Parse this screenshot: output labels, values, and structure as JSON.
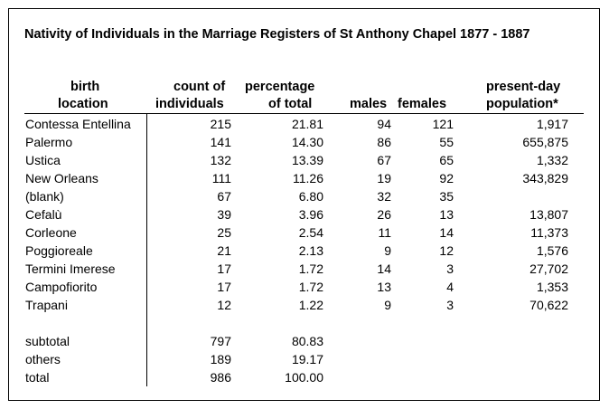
{
  "title": "Nativity of Individuals in the Marriage Registers of St Anthony Chapel 1877 - 1887",
  "headers": {
    "birth_line1": "birth",
    "birth_line2": "location",
    "count_line1": "count of",
    "count_line2": "individuals",
    "pct_line1": "percentage",
    "pct_line2": "of total",
    "males": "males",
    "females": "females",
    "pop_line1": "present-day",
    "pop_line2": "population*"
  },
  "rows": [
    {
      "location": "Contessa Entellina",
      "count": "215",
      "percentage": "21.81",
      "males": "94",
      "females": "121",
      "population": "1,917"
    },
    {
      "location": "Palermo",
      "count": "141",
      "percentage": "14.30",
      "males": "86",
      "females": "55",
      "population": "655,875"
    },
    {
      "location": "Ustica",
      "count": "132",
      "percentage": "13.39",
      "males": "67",
      "females": "65",
      "population": "1,332"
    },
    {
      "location": "New Orleans",
      "count": "111",
      "percentage": "11.26",
      "males": "19",
      "females": "92",
      "population": "343,829"
    },
    {
      "location": "(blank)",
      "count": "67",
      "percentage": "6.80",
      "males": "32",
      "females": "35",
      "population": ""
    },
    {
      "location": "Cefalù",
      "count": "39",
      "percentage": "3.96",
      "males": "26",
      "females": "13",
      "population": "13,807"
    },
    {
      "location": "Corleone",
      "count": "25",
      "percentage": "2.54",
      "males": "11",
      "females": "14",
      "population": "11,373"
    },
    {
      "location": "Poggioreale",
      "count": "21",
      "percentage": "2.13",
      "males": "9",
      "females": "12",
      "population": "1,576"
    },
    {
      "location": "Termini Imerese",
      "count": "17",
      "percentage": "1.72",
      "males": "14",
      "females": "3",
      "population": "27,702"
    },
    {
      "location": "Campofiorito",
      "count": "17",
      "percentage": "1.72",
      "males": "13",
      "females": "4",
      "population": "1,353"
    },
    {
      "location": "Trapani",
      "count": "12",
      "percentage": "1.22",
      "males": "9",
      "females": "3",
      "population": "70,622"
    }
  ],
  "totals": [
    {
      "label": "subtotal",
      "count": "797",
      "percentage": "80.83"
    },
    {
      "label": "others",
      "count": "189",
      "percentage": "19.17"
    },
    {
      "label": "total",
      "count": "986",
      "percentage": "100.00"
    }
  ]
}
